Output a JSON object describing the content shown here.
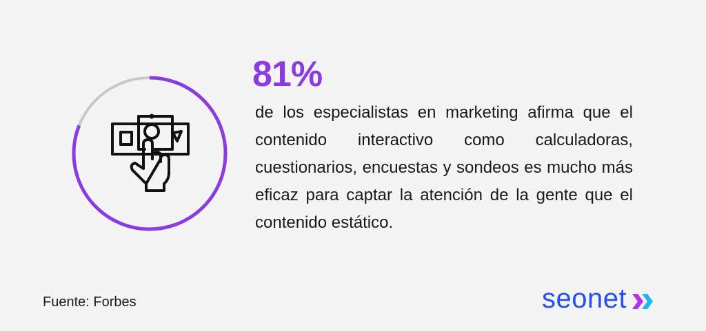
{
  "stat": {
    "value": "81%",
    "progress_percent": 81,
    "accent_color": "#8b3be2",
    "track_color": "#c8c8c8"
  },
  "description": "de los especialistas en marketing afirma que el contenido interactivo como calculadoras, cuestionarios, encuestas y sondeos es mucho más eficaz para captar la atención de la gente que el contenido estático.",
  "icon": "hand-tapping-money-icon",
  "source": "Fuente: Forbes",
  "logo": {
    "text": "seonet",
    "color": "#2452f0"
  }
}
